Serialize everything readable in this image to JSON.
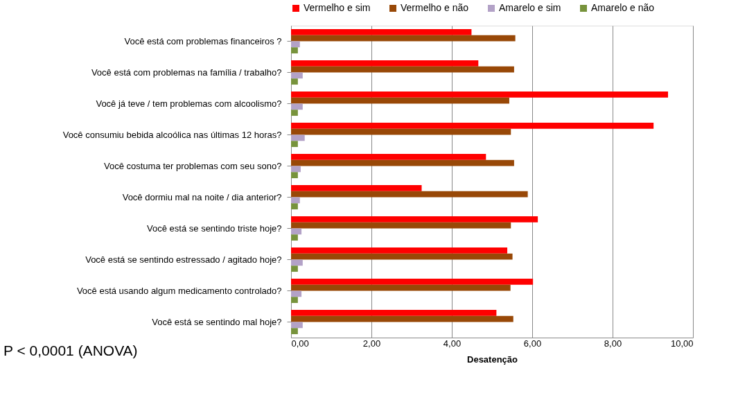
{
  "chart_data": {
    "type": "bar",
    "orientation": "horizontal",
    "xlabel": "Desatenção",
    "categories": [
      "Você está com problemas financeiros ?",
      "Você está com problemas na família / trabalho?",
      "Você já teve / tem problemas com alcoolismo?",
      "Você consumiu bebida alcoólica nas últimas 12 horas?",
      "Você costuma ter problemas com seu sono?",
      "Você dormiu mal na noite / dia anterior?",
      "Você está se sentindo  triste hoje?",
      "Você está se sentindo  estressado / agitado hoje?",
      "Você está usando algum medicamento controlado?",
      "Você está se sentindo mal hoje?"
    ],
    "series": [
      {
        "name": "Vermelho e sim",
        "color": "#ff0000",
        "values": [
          4.49,
          4.66,
          9.38,
          9.02,
          4.85,
          3.25,
          6.14,
          5.38,
          6.02,
          5.11
        ]
      },
      {
        "name": "Vermelho e não",
        "color": "#984807",
        "values": [
          5.58,
          5.55,
          5.43,
          5.47,
          5.55,
          5.89,
          5.47,
          5.51,
          5.46,
          5.53
        ]
      },
      {
        "name": "Amarelo e sim",
        "color": "#b3a2c7",
        "values": [
          0.22,
          0.29,
          0.29,
          0.34,
          0.24,
          0.22,
          0.26,
          0.29,
          0.26,
          0.29
        ]
      },
      {
        "name": "Amarelo e não",
        "color": "#77933c",
        "values": [
          0.17,
          0.17,
          0.17,
          0.17,
          0.17,
          0.17,
          0.17,
          0.17,
          0.17,
          0.17
        ]
      }
    ],
    "xlim": [
      0,
      10
    ],
    "xticks": [
      {
        "value": 0,
        "label": "0,00"
      },
      {
        "value": 2,
        "label": "2,00"
      },
      {
        "value": 4,
        "label": "4,00"
      },
      {
        "value": 6,
        "label": "6,00"
      },
      {
        "value": 8,
        "label": "8,00"
      },
      {
        "value": 10,
        "label": "10,00"
      }
    ],
    "grid": "x",
    "legend": "top right",
    "annotations": [
      "P < 0,0001 (ANOVA)"
    ]
  }
}
